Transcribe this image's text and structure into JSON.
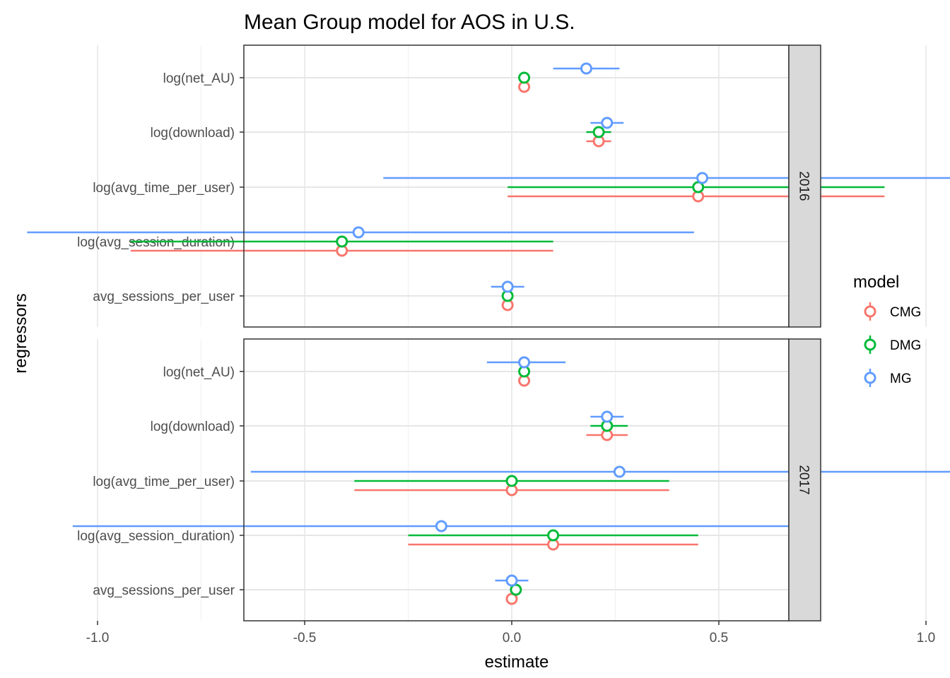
{
  "chart_data": {
    "type": "scatter",
    "title": "Mean Group model for AOS in U.S.",
    "xlabel": "estimate",
    "ylabel": "regressors",
    "xlim": [
      -1.3,
      1.34
    ],
    "xticks": [
      -1.0,
      -0.5,
      0.0,
      0.5,
      1.0
    ],
    "xtick_labels": [
      "-1.0",
      "-0.5",
      "0.0",
      "0.5",
      "1.0"
    ],
    "categories": [
      "log(net_AU)",
      "log(download)",
      "log(avg_time_per_user)",
      "log(avg_session_duration)",
      "avg_sessions_per_user"
    ],
    "grid": true,
    "legend": {
      "title": "model",
      "position": "right",
      "entries": [
        {
          "name": "CMG",
          "color": "#F8766D"
        },
        {
          "name": "DMG",
          "color": "#00BA38"
        },
        {
          "name": "MG",
          "color": "#619CFF"
        }
      ]
    },
    "panels": [
      {
        "label": "2016",
        "series": [
          {
            "name": "CMG",
            "estimate": [
              0.03,
              0.21,
              0.45,
              -0.41,
              -0.01
            ],
            "low": [
              null,
              0.18,
              -0.01,
              -0.92,
              null
            ],
            "high": [
              null,
              0.24,
              0.9,
              0.1,
              null
            ]
          },
          {
            "name": "DMG",
            "estimate": [
              0.03,
              0.21,
              0.45,
              -0.41,
              -0.01
            ],
            "low": [
              null,
              0.18,
              -0.01,
              -0.92,
              null
            ],
            "high": [
              null,
              0.24,
              0.9,
              0.1,
              null
            ]
          },
          {
            "name": "MG",
            "estimate": [
              0.18,
              0.23,
              0.46,
              -0.37,
              -0.01
            ],
            "low": [
              0.1,
              0.19,
              -0.31,
              -1.17,
              -0.05
            ],
            "high": [
              0.26,
              0.27,
              1.22,
              0.44,
              0.03
            ]
          }
        ]
      },
      {
        "label": "2017",
        "series": [
          {
            "name": "CMG",
            "estimate": [
              0.03,
              0.23,
              0.0,
              0.1,
              0.0
            ],
            "low": [
              null,
              0.18,
              -0.38,
              -0.25,
              null
            ],
            "high": [
              null,
              0.28,
              0.38,
              0.45,
              null
            ]
          },
          {
            "name": "DMG",
            "estimate": [
              0.03,
              0.23,
              0.0,
              0.1,
              0.01
            ],
            "low": [
              null,
              0.19,
              -0.38,
              -0.25,
              null
            ],
            "high": [
              null,
              0.28,
              0.38,
              0.45,
              null
            ]
          },
          {
            "name": "MG",
            "estimate": [
              0.03,
              0.23,
              0.26,
              -0.17,
              0.0
            ],
            "low": [
              -0.06,
              0.19,
              -0.63,
              -1.06,
              -0.04
            ],
            "high": [
              0.13,
              0.27,
              1.16,
              0.72,
              0.04
            ]
          }
        ]
      }
    ]
  }
}
